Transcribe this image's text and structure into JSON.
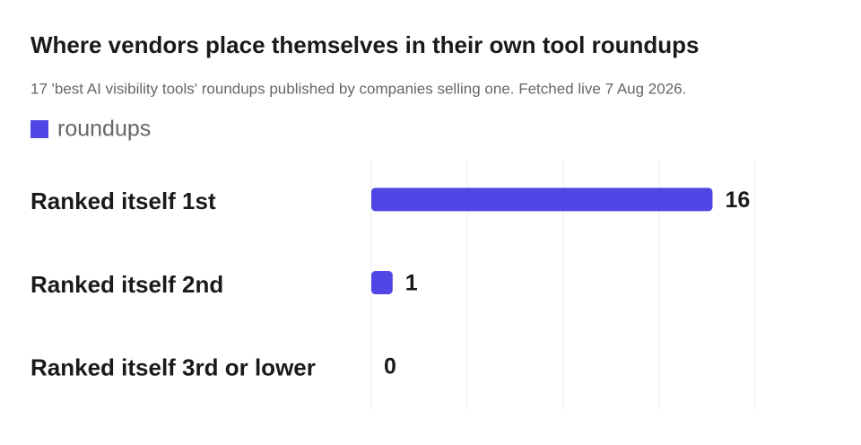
{
  "chart_data": {
    "type": "bar",
    "orientation": "horizontal",
    "title": "Where vendors place themselves in their own tool roundups",
    "subtitle": "17 'best AI visibility tools' roundups published by companies selling one. Fetched live 7 Aug 2026.",
    "categories": [
      "Ranked itself 1st",
      "Ranked itself 2nd",
      "Ranked itself 3rd or lower"
    ],
    "series": [
      {
        "name": "roundups",
        "color": "#4f46e5",
        "values": [
          16,
          1,
          0
        ]
      }
    ],
    "xlim": [
      0,
      18
    ],
    "xticks": [
      0,
      4.5,
      9,
      13.5,
      18
    ],
    "grid": true,
    "legend": "top-left"
  }
}
